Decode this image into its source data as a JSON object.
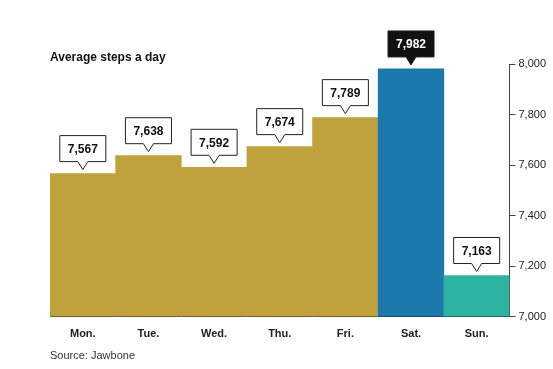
{
  "chart_data": {
    "type": "bar",
    "title": "Average steps a day",
    "source": "Source: Jawbone",
    "categories": [
      "Mon.",
      "Tue.",
      "Wed.",
      "Thu.",
      "Fri.",
      "Sat.",
      "Sun."
    ],
    "values": [
      7567,
      7638,
      7592,
      7674,
      7789,
      7982,
      7163
    ],
    "value_labels": [
      "7,567",
      "7,638",
      "7,592",
      "7,674",
      "7,789",
      "7,982",
      "7,163"
    ],
    "data_labels": true,
    "colors": [
      "#bfa23b",
      "#bfa23b",
      "#bfa23b",
      "#bfa23b",
      "#bfa23b",
      "#1b79ad",
      "#2db3a2"
    ],
    "ylim": [
      7000,
      8000
    ],
    "yticks": [
      {
        "value": 7000,
        "label": "7,000"
      },
      {
        "value": 7200,
        "label": "7,200"
      },
      {
        "value": 7400,
        "label": "7,400"
      },
      {
        "value": 7600,
        "label": "7,600"
      },
      {
        "value": 7800,
        "label": "7,800"
      },
      {
        "value": 8000,
        "label": "8,000"
      }
    ],
    "grid": false
  }
}
